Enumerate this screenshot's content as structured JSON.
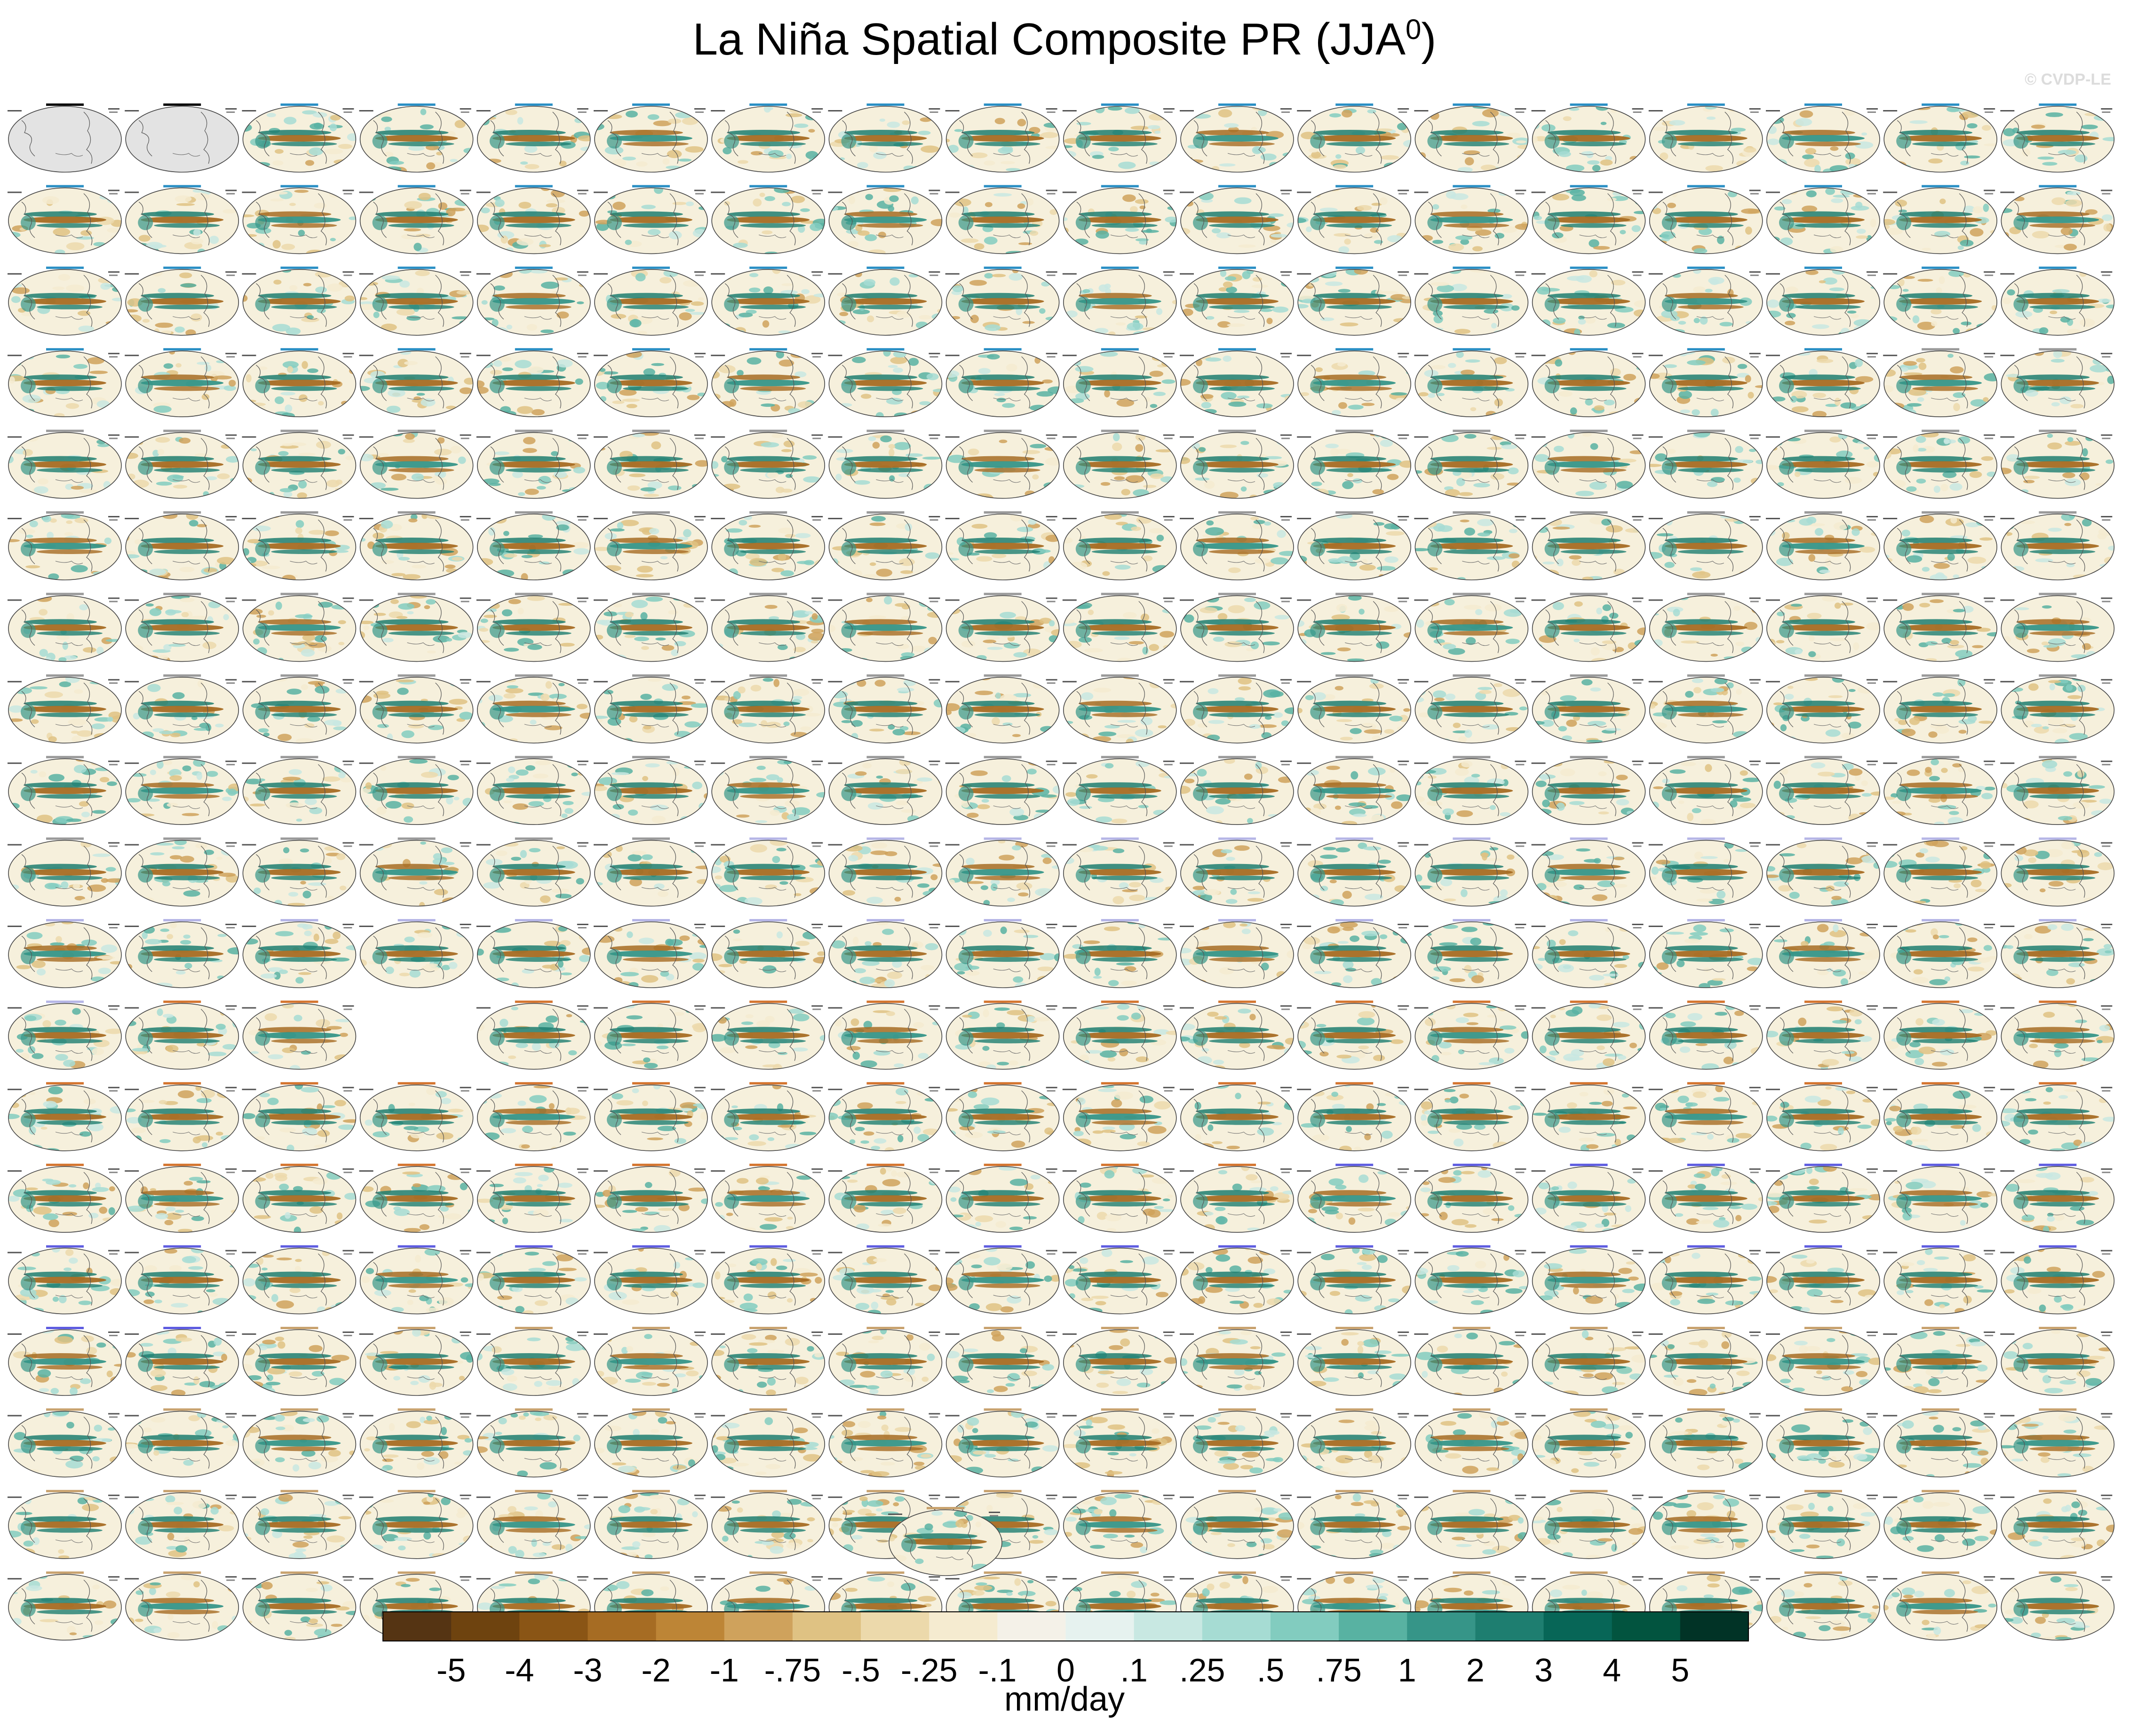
{
  "figure": {
    "title_main": "La Niña Spatial Composite PR (JJA",
    "title_sup": "0",
    "title_close": ")",
    "watermark": "© CVDP-LE",
    "units": "mm/day"
  },
  "chart_data": {
    "type": "heatmap",
    "title": "La Niña Spatial Composite PR (JJA0)",
    "variable": "PR",
    "season": "JJA0",
    "units": "mm/day",
    "projection": "global map, Pacific-centered ellipse",
    "grid_rows": 19,
    "grid_cols": 18,
    "observation_panels": 2,
    "empty_slots": [
      [
        11,
        3
      ]
    ],
    "extra_panel": "single map centered below the grid",
    "colorbar": {
      "tick_labels": [
        "-5",
        "-4",
        "-3",
        "-2",
        "-1",
        "-.75",
        "-.5",
        "-.25",
        "-.1",
        "0",
        ".1",
        ".25",
        ".5",
        ".75",
        "1",
        "2",
        "3",
        "4",
        "5"
      ],
      "levels": [
        -5,
        -4,
        -3,
        -2,
        -1,
        -0.75,
        -0.5,
        -0.25,
        -0.1,
        0,
        0.1,
        0.25,
        0.5,
        0.75,
        1,
        2,
        3,
        4,
        5
      ],
      "colors": [
        "#553413",
        "#6e430f",
        "#8a5515",
        "#a66c23",
        "#bd8536",
        "#cfa25c",
        "#dfc283",
        "#ecd9ab",
        "#f5ebd0",
        "#f4f1e8",
        "#e6f2ef",
        "#c8e8e2",
        "#a6dcd3",
        "#82ccbf",
        "#58b2a2",
        "#369588",
        "#1e7e70",
        "#076657",
        "#02543f",
        "#013326"
      ]
    },
    "panel_header_colors": {
      "obs": "#000000",
      "CanESM5": "#2a8fc4",
      "CESM2-LENS": "#9a9a9a",
      "CNRM-CM6-1": "#b5b5e6",
      "GISS-E2-1-G": "#d4742e",
      "IPSL-CM6A-LR": "#5d5be0",
      "MIROC6": "#c8a26e"
    }
  }
}
